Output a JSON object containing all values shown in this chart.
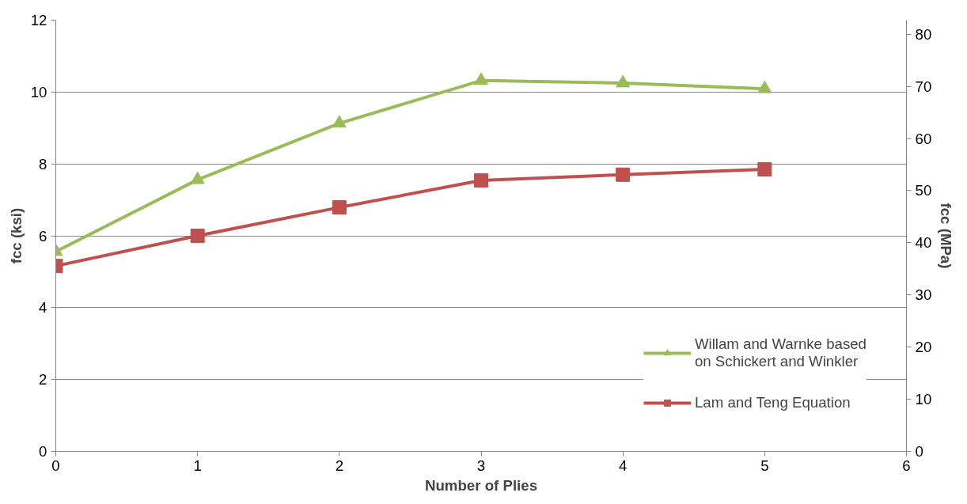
{
  "chart_data": {
    "type": "line",
    "xlabel": "Number of Plies",
    "ylabel": "fcc (ksi)",
    "y2label": "fcc (MPa)",
    "x": [
      0,
      1,
      2,
      3,
      4,
      5
    ],
    "xlim": [
      0,
      6
    ],
    "xticks": [
      0,
      1,
      2,
      3,
      4,
      5,
      6
    ],
    "ylim": [
      0,
      12
    ],
    "yticks": [
      0,
      2,
      4,
      6,
      8,
      10,
      12
    ],
    "y2lim": [
      0,
      82.7
    ],
    "y2ticks": [
      0,
      10,
      20,
      30,
      40,
      50,
      60,
      70,
      80
    ],
    "grid": "y",
    "legend": "bottom right",
    "series": [
      {
        "name": "Willam and Warnke based on Schickert and Winkler",
        "color": "#9bbb59",
        "marker": "triangle",
        "values": [
          5.56,
          7.56,
          9.13,
          10.32,
          10.25,
          10.09
        ]
      },
      {
        "name": "Lam and Teng Equation",
        "color": "#c0504d",
        "marker": "square",
        "values": [
          5.16,
          6.0,
          6.79,
          7.54,
          7.7,
          7.85
        ]
      }
    ]
  }
}
